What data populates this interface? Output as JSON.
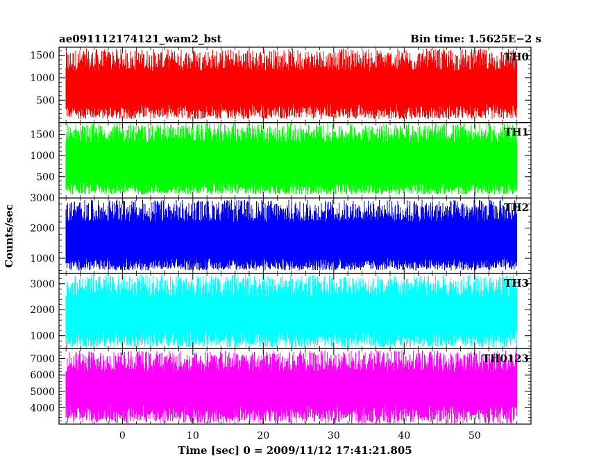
{
  "chart_data": {
    "type": "line",
    "title_left": "ae091112174121_wam2_bst",
    "title_right": "Bin time: 1.5625E−2 s",
    "xlabel": "Time [sec] 0 = 2009/11/12 17:41:21.805",
    "ylabel": "Counts/sec",
    "xlim": [
      -9,
      58
    ],
    "x_ticks": [
      0,
      10,
      20,
      30,
      40,
      50
    ],
    "x_tick_labels": [
      "0",
      "10",
      "20",
      "30",
      "40",
      "50"
    ],
    "data_x_range": [
      -8,
      56
    ],
    "grid": false,
    "panels": [
      {
        "name": "TH0",
        "color": "#ff0000",
        "ylim": [
          0,
          1680
        ],
        "y_ticks": [
          500,
          1000,
          1500
        ],
        "y_tick_labels": [
          "500",
          "1000",
          "1500"
        ],
        "envelope": {
          "low": [
            80,
            420
          ],
          "high": [
            1150,
            1650
          ]
        }
      },
      {
        "name": "TH1",
        "color": "#00ff00",
        "ylim": [
          0,
          1780
        ],
        "y_ticks": [
          500,
          1000,
          1500
        ],
        "y_tick_labels": [
          "500",
          "1000",
          "1500"
        ],
        "envelope": {
          "low": [
            80,
            380
          ],
          "high": [
            1300,
            1760
          ]
        }
      },
      {
        "name": "TH2",
        "color": "#0000ff",
        "ylim": [
          500,
          3000
        ],
        "y_ticks": [
          1000,
          2000,
          3000
        ],
        "y_tick_labels": [
          "1000",
          "2000",
          "3000"
        ],
        "envelope": {
          "low": [
            600,
            1000
          ],
          "high": [
            2200,
            2950
          ]
        }
      },
      {
        "name": "TH3",
        "color": "#00ffff",
        "ylim": [
          500,
          3400
        ],
        "y_ticks": [
          1000,
          2000,
          3000
        ],
        "y_tick_labels": [
          "1000",
          "2000",
          "3000"
        ],
        "envelope": {
          "low": [
            550,
            1200
          ],
          "high": [
            2500,
            3350
          ]
        }
      },
      {
        "name": "TH0123",
        "color": "#ff00ff",
        "ylim": [
          3000,
          7600
        ],
        "y_ticks": [
          4000,
          5000,
          6000,
          7000
        ],
        "y_tick_labels": [
          "4000",
          "5000",
          "6000",
          "7000"
        ],
        "envelope": {
          "low": [
            3050,
            4200
          ],
          "high": [
            6200,
            7500
          ]
        }
      }
    ]
  }
}
